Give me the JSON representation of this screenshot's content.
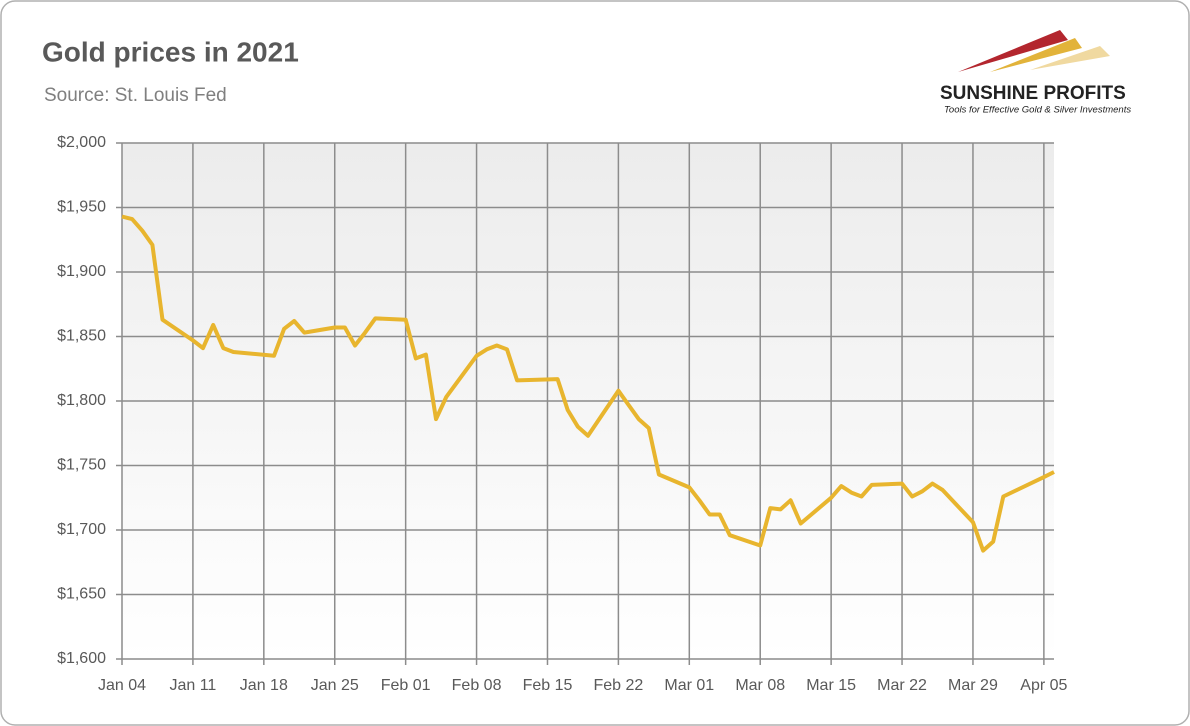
{
  "chart_data": {
    "type": "line",
    "title": "Gold prices in 2021",
    "subtitle": "Source: St. Louis Fed",
    "x": [
      "2021-01-04",
      "2021-01-05",
      "2021-01-06",
      "2021-01-07",
      "2021-01-08",
      "2021-01-11",
      "2021-01-12",
      "2021-01-13",
      "2021-01-14",
      "2021-01-15",
      "2021-01-19",
      "2021-01-20",
      "2021-01-21",
      "2021-01-22",
      "2021-01-25",
      "2021-01-26",
      "2021-01-27",
      "2021-01-28",
      "2021-01-29",
      "2021-02-01",
      "2021-02-02",
      "2021-02-03",
      "2021-02-04",
      "2021-02-05",
      "2021-02-08",
      "2021-02-09",
      "2021-02-10",
      "2021-02-11",
      "2021-02-12",
      "2021-02-16",
      "2021-02-17",
      "2021-02-18",
      "2021-02-19",
      "2021-02-22",
      "2021-02-23",
      "2021-02-24",
      "2021-02-25",
      "2021-02-26",
      "2021-03-01",
      "2021-03-02",
      "2021-03-03",
      "2021-03-04",
      "2021-03-05",
      "2021-03-08",
      "2021-03-09",
      "2021-03-10",
      "2021-03-11",
      "2021-03-12",
      "2021-03-15",
      "2021-03-16",
      "2021-03-17",
      "2021-03-18",
      "2021-03-19",
      "2021-03-22",
      "2021-03-23",
      "2021-03-24",
      "2021-03-25",
      "2021-03-26",
      "2021-03-29",
      "2021-03-30",
      "2021-03-31",
      "2021-04-01",
      "2021-04-05",
      "2021-04-06"
    ],
    "series": [
      {
        "name": "Gold price",
        "color": "#e8b52e",
        "values": [
          1943,
          1941,
          1932,
          1921,
          1863,
          1847,
          1841,
          1859,
          1841,
          1838,
          1835,
          1856,
          1862,
          1853,
          1857,
          1857,
          1843,
          1853,
          1864,
          1863,
          1833,
          1836,
          1786,
          1803,
          1835,
          1840,
          1843,
          1840,
          1816,
          1817,
          1793,
          1780,
          1773,
          1808,
          1797,
          1786,
          1779,
          1743,
          1733,
          1723,
          1712,
          1712,
          1696,
          1688,
          1717,
          1716,
          1723,
          1705,
          1725,
          1734,
          1729,
          1726,
          1735,
          1736,
          1726,
          1730,
          1736,
          1731,
          1706,
          1684,
          1691,
          1726,
          1741,
          1745
        ]
      }
    ],
    "xlim": [
      "2021-01-04",
      "2021-04-06"
    ],
    "xticks": [
      {
        "value": "2021-01-04",
        "label": "Jan 04"
      },
      {
        "value": "2021-01-11",
        "label": "Jan 11"
      },
      {
        "value": "2021-01-18",
        "label": "Jan 18"
      },
      {
        "value": "2021-01-25",
        "label": "Jan 25"
      },
      {
        "value": "2021-02-01",
        "label": "Feb 01"
      },
      {
        "value": "2021-02-08",
        "label": "Feb 08"
      },
      {
        "value": "2021-02-15",
        "label": "Feb 15"
      },
      {
        "value": "2021-02-22",
        "label": "Feb 22"
      },
      {
        "value": "2021-03-01",
        "label": "Mar 01"
      },
      {
        "value": "2021-03-08",
        "label": "Mar 08"
      },
      {
        "value": "2021-03-15",
        "label": "Mar 15"
      },
      {
        "value": "2021-03-22",
        "label": "Mar 22"
      },
      {
        "value": "2021-03-29",
        "label": "Mar 29"
      },
      {
        "value": "2021-04-05",
        "label": "Apr 05"
      }
    ],
    "ylim": [
      1600,
      2000
    ],
    "yticks": [
      {
        "value": 1600,
        "label": "$1,600"
      },
      {
        "value": 1650,
        "label": "$1,650"
      },
      {
        "value": 1700,
        "label": "$1,700"
      },
      {
        "value": 1750,
        "label": "$1,750"
      },
      {
        "value": 1800,
        "label": "$1,800"
      },
      {
        "value": 1850,
        "label": "$1,850"
      },
      {
        "value": 1900,
        "label": "$1,900"
      },
      {
        "value": 1950,
        "label": "$1,950"
      },
      {
        "value": 2000,
        "label": "$2,000"
      }
    ],
    "grid": true
  },
  "logo": {
    "name": "SUNSHINE PROFITS",
    "tagline": "Tools for Effective Gold & Silver Investments"
  }
}
